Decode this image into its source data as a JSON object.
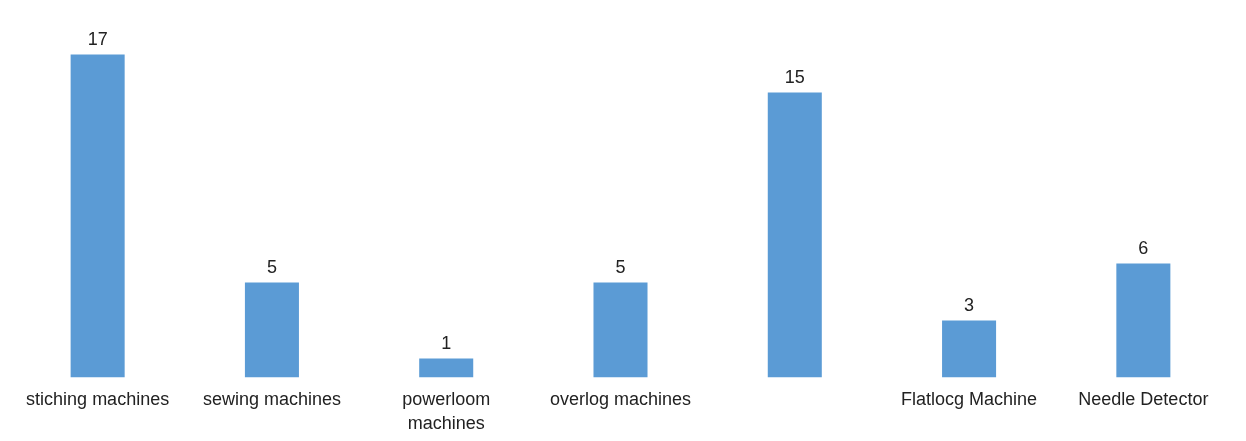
{
  "chart_data": {
    "type": "bar",
    "categories": [
      "stiching machines",
      "sewing machines",
      "powerloom\nmachines",
      "overlog machines",
      null,
      "Flatlocg Machine",
      "Needle Detector"
    ],
    "values": [
      17,
      5,
      1,
      5,
      15,
      3,
      6
    ],
    "color": "#5b9bd5",
    "data_labels": true
  }
}
